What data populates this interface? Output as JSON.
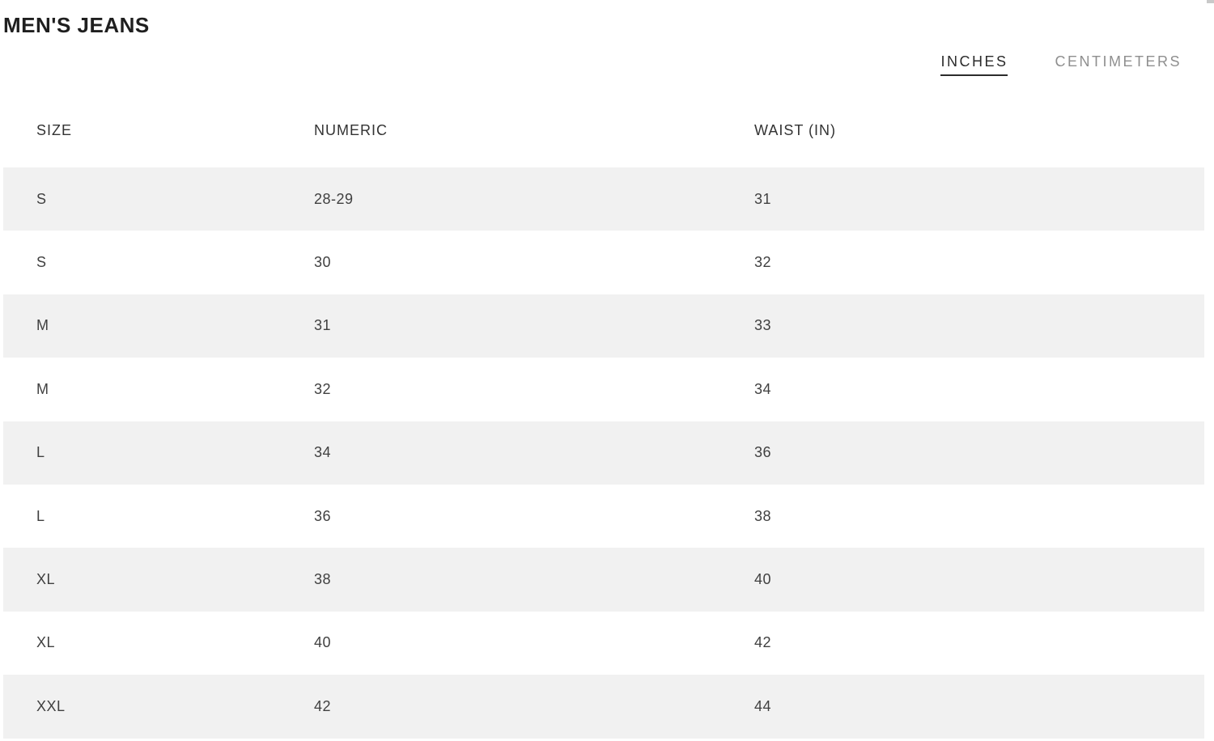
{
  "page": {
    "title": "MEN'S JEANS"
  },
  "unit_toggle": {
    "options": [
      {
        "label": "INCHES",
        "active": true
      },
      {
        "label": "CENTIMETERS",
        "active": false
      }
    ]
  },
  "table": {
    "columns": [
      "SIZE",
      "NUMERIC",
      "WAIST (IN)"
    ],
    "rows": [
      [
        "S",
        "28-29",
        "31"
      ],
      [
        "S",
        "30",
        "32"
      ],
      [
        "M",
        "31",
        "33"
      ],
      [
        "M",
        "32",
        "34"
      ],
      [
        "L",
        "34",
        "36"
      ],
      [
        "L",
        "36",
        "38"
      ],
      [
        "XL",
        "38",
        "40"
      ],
      [
        "XL",
        "40",
        "42"
      ],
      [
        "XXL",
        "42",
        "44"
      ]
    ]
  },
  "colors": {
    "title_text": "#1f1f1f",
    "header_text": "#333333",
    "cell_text": "#404040",
    "toggle_active": "#2b2b2b",
    "toggle_inactive": "#8f8f8f",
    "row_stripe": "#f1f1f1",
    "background": "#ffffff"
  }
}
